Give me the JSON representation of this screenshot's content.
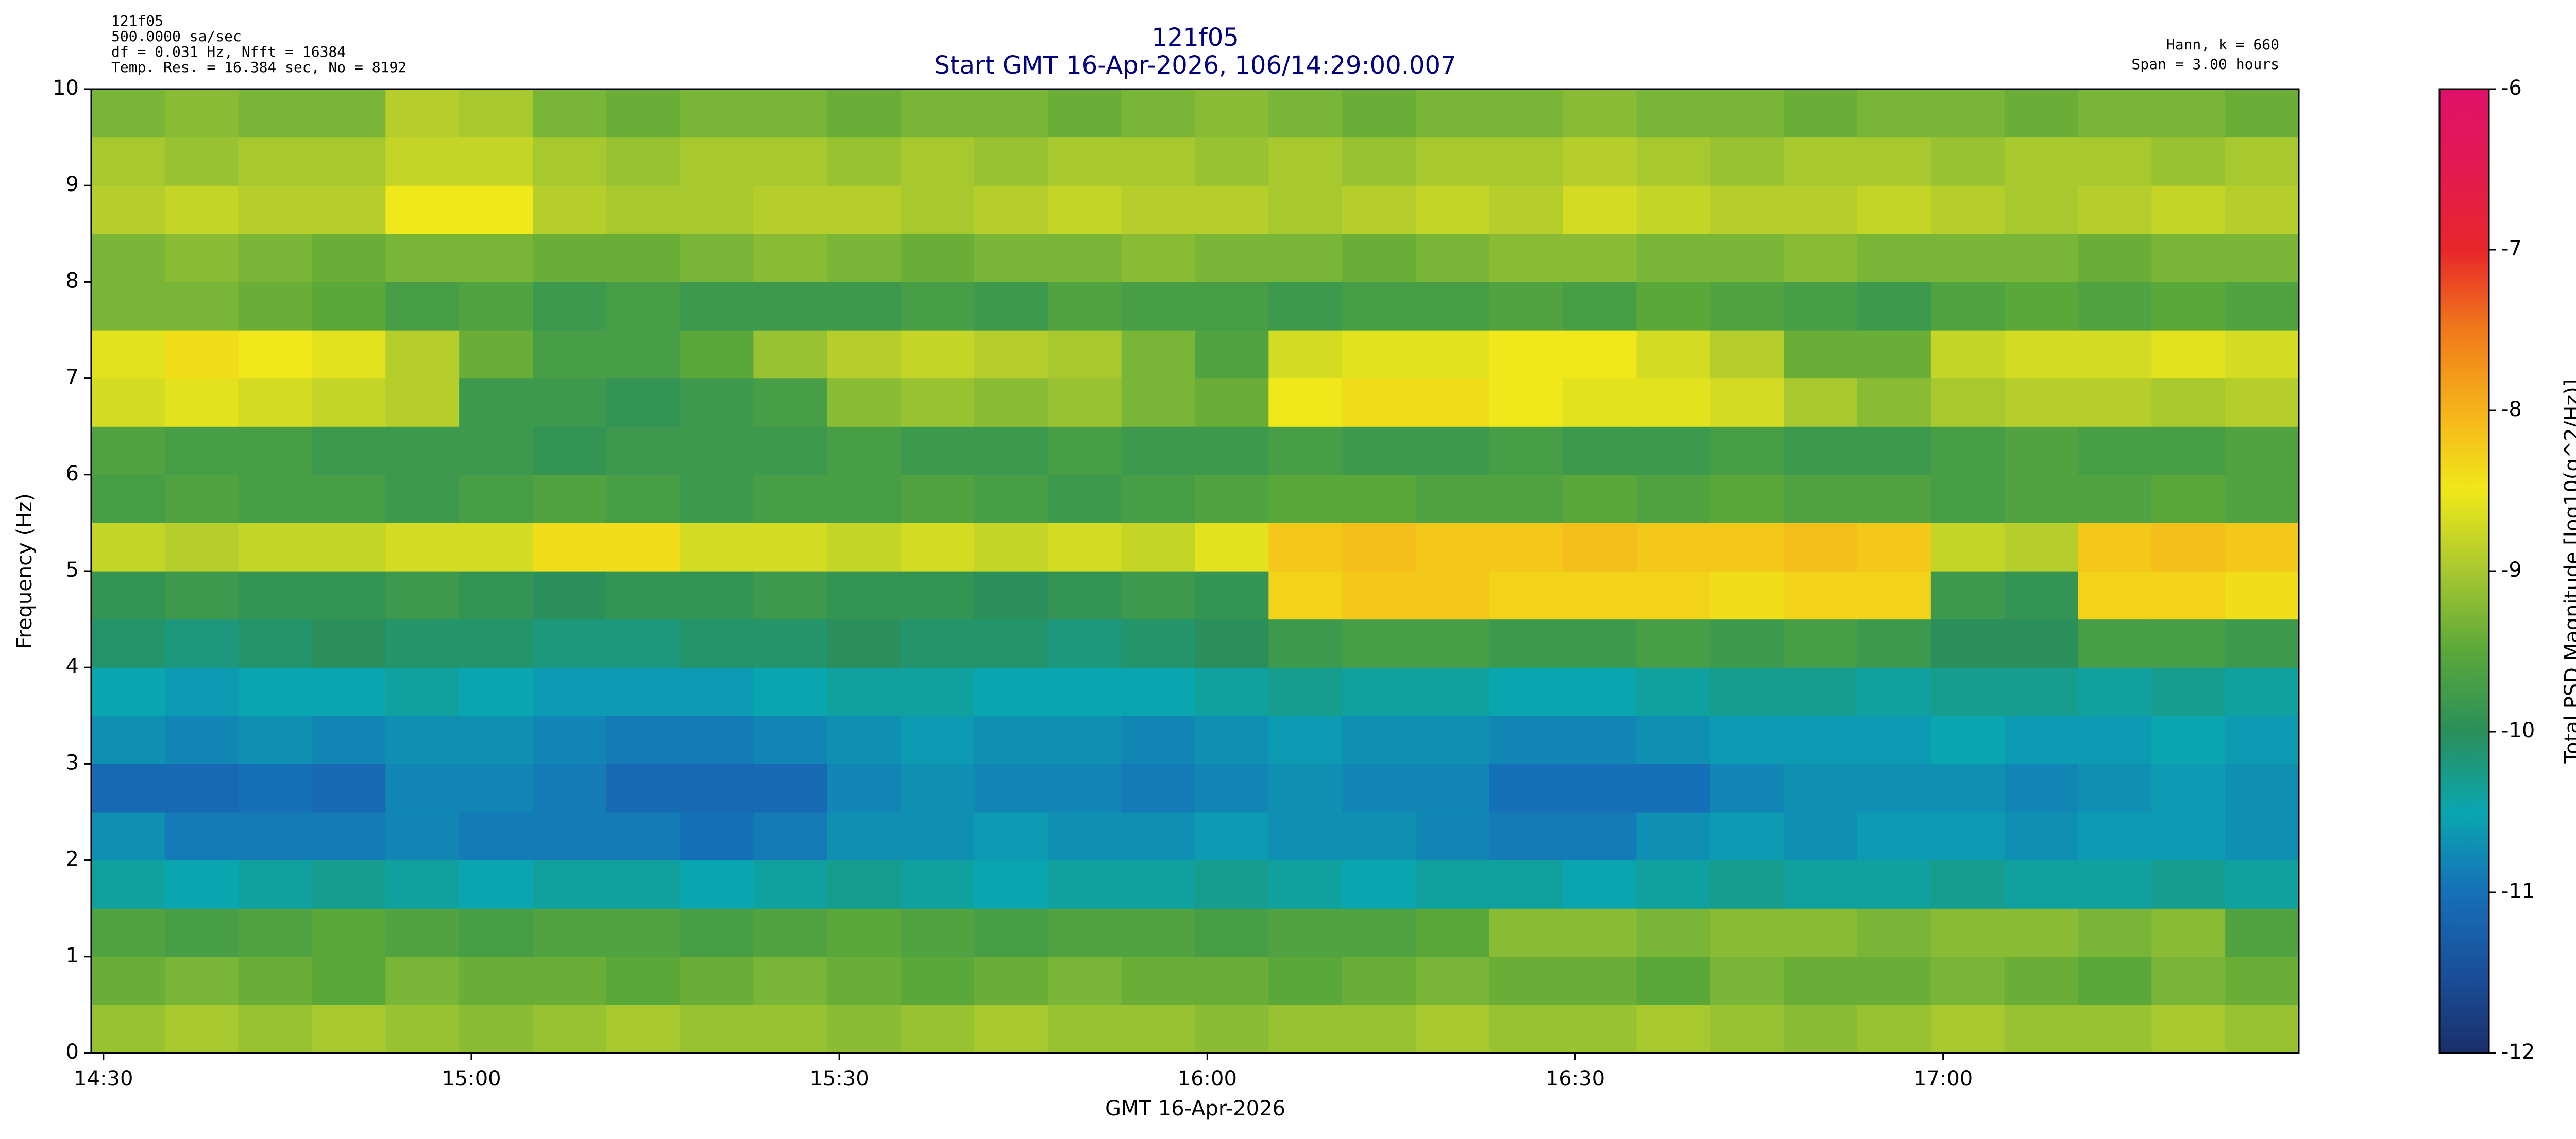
{
  "chart_data": {
    "type": "heatmap",
    "title": "121f05",
    "subtitle": "Start GMT 16-Apr-2026, 106/14:29:00.007",
    "info_left": [
      "121f05",
      "500.0000 sa/sec",
      "df = 0.031 Hz,  Nfft = 16384",
      "Temp. Res. = 16.384 sec, No = 8192"
    ],
    "info_right": [
      "Hann, k = 660",
      "Span = 3.00 hours"
    ],
    "xlabel": "GMT 16-Apr-2026",
    "ylabel": "Frequency (Hz)",
    "colorbar_label": "Total PSD Magnitude [log10(g^2/Hz)]",
    "xlim": [
      0,
      180
    ],
    "xticks": [
      {
        "value": 1,
        "label": "14:30"
      },
      {
        "value": 31,
        "label": "15:00"
      },
      {
        "value": 61,
        "label": "15:30"
      },
      {
        "value": 91,
        "label": "16:00"
      },
      {
        "value": 121,
        "label": "16:30"
      },
      {
        "value": 151,
        "label": "17:00"
      }
    ],
    "ylim": [
      0,
      10
    ],
    "yticks": [
      0,
      1,
      2,
      3,
      4,
      5,
      6,
      7,
      8,
      9,
      10
    ],
    "clim": [
      -12,
      -6
    ],
    "cticks": [
      -12,
      -11,
      -10,
      -9,
      -8,
      -7,
      -6
    ],
    "colors": [
      "#1a2f6a",
      "#1a4f9a",
      "#1670b8",
      "#0aa6b0",
      "#2a8f5a",
      "#5aa83a",
      "#a8c830",
      "#f0e81a",
      "#f6b31a",
      "#f07a1a",
      "#e8262a",
      "#e21a50",
      "#e0106a"
    ],
    "z": [
      [
        -9.1,
        -9.0,
        -9.1,
        -9.0,
        -9.1,
        -9.2,
        -9.1,
        -9.0,
        -9.1,
        -9.1,
        -9.2,
        -9.1,
        -9.0,
        -9.1,
        -9.1,
        -9.2,
        -9.1,
        -9.1,
        -9.0,
        -9.1,
        -9.1,
        -9.0,
        -9.1,
        -9.2,
        -9.1,
        -9.0,
        -9.1,
        -9.1,
        -9.0,
        -9.1
      ],
      [
        -9.4,
        -9.3,
        -9.4,
        -9.5,
        -9.3,
        -9.4,
        -9.4,
        -9.5,
        -9.4,
        -9.3,
        -9.4,
        -9.5,
        -9.4,
        -9.3,
        -9.4,
        -9.4,
        -9.5,
        -9.4,
        -9.3,
        -9.4,
        -9.4,
        -9.5,
        -9.3,
        -9.4,
        -9.4,
        -9.3,
        -9.4,
        -9.5,
        -9.3,
        -9.4
      ],
      [
        -9.6,
        -9.7,
        -9.6,
        -9.5,
        -9.6,
        -9.7,
        -9.6,
        -9.6,
        -9.7,
        -9.6,
        -9.5,
        -9.6,
        -9.7,
        -9.6,
        -9.6,
        -9.7,
        -9.6,
        -9.6,
        -9.5,
        -9.2,
        -9.2,
        -9.3,
        -9.2,
        -9.2,
        -9.3,
        -9.2,
        -9.2,
        -9.3,
        -9.2,
        -9.6
      ],
      [
        -10.4,
        -10.5,
        -10.4,
        -10.3,
        -10.4,
        -10.5,
        -10.4,
        -10.4,
        -10.5,
        -10.4,
        -10.3,
        -10.4,
        -10.5,
        -10.4,
        -10.4,
        -10.3,
        -10.4,
        -10.5,
        -10.4,
        -10.4,
        -10.5,
        -10.4,
        -10.3,
        -10.4,
        -10.4,
        -10.3,
        -10.4,
        -10.4,
        -10.3,
        -10.4
      ],
      [
        -10.7,
        -10.9,
        -10.9,
        -10.9,
        -10.8,
        -10.9,
        -10.9,
        -10.9,
        -11.0,
        -10.9,
        -10.7,
        -10.7,
        -10.6,
        -10.7,
        -10.7,
        -10.6,
        -10.7,
        -10.7,
        -10.8,
        -10.9,
        -10.9,
        -10.7,
        -10.6,
        -10.7,
        -10.6,
        -10.6,
        -10.7,
        -10.6,
        -10.6,
        -10.7
      ],
      [
        -11.1,
        -11.1,
        -11.0,
        -11.1,
        -10.8,
        -10.8,
        -10.9,
        -11.1,
        -11.1,
        -11.1,
        -10.8,
        -10.7,
        -10.8,
        -10.8,
        -10.9,
        -10.8,
        -10.7,
        -10.8,
        -10.8,
        -11.0,
        -11.0,
        -11.0,
        -10.8,
        -10.7,
        -10.7,
        -10.7,
        -10.8,
        -10.7,
        -10.6,
        -10.7
      ],
      [
        -10.7,
        -10.8,
        -10.7,
        -10.8,
        -10.7,
        -10.7,
        -10.8,
        -10.9,
        -10.9,
        -10.8,
        -10.7,
        -10.6,
        -10.7,
        -10.7,
        -10.8,
        -10.7,
        -10.6,
        -10.7,
        -10.7,
        -10.8,
        -10.8,
        -10.7,
        -10.6,
        -10.6,
        -10.6,
        -10.5,
        -10.6,
        -10.6,
        -10.5,
        -10.6
      ],
      [
        -10.5,
        -10.6,
        -10.5,
        -10.5,
        -10.4,
        -10.5,
        -10.6,
        -10.6,
        -10.6,
        -10.5,
        -10.4,
        -10.4,
        -10.5,
        -10.5,
        -10.5,
        -10.4,
        -10.3,
        -10.4,
        -10.4,
        -10.5,
        -10.5,
        -10.4,
        -10.3,
        -10.3,
        -10.4,
        -10.3,
        -10.3,
        -10.4,
        -10.3,
        -10.4
      ],
      [
        -10.1,
        -10.2,
        -10.1,
        -10.0,
        -10.1,
        -10.1,
        -10.2,
        -10.2,
        -10.1,
        -10.1,
        -10.0,
        -10.1,
        -10.1,
        -10.2,
        -10.1,
        -10.0,
        -9.8,
        -9.7,
        -9.7,
        -9.8,
        -9.8,
        -9.7,
        -9.8,
        -9.7,
        -9.8,
        -10.0,
        -10.0,
        -9.7,
        -9.7,
        -9.8
      ],
      [
        -9.9,
        -9.8,
        -9.9,
        -9.9,
        -9.8,
        -9.9,
        -10.0,
        -9.9,
        -9.9,
        -9.8,
        -9.9,
        -9.9,
        -10.0,
        -9.9,
        -9.8,
        -9.9,
        -8.3,
        -8.2,
        -8.2,
        -8.3,
        -8.3,
        -8.3,
        -8.4,
        -8.3,
        -8.3,
        -9.8,
        -9.9,
        -8.3,
        -8.3,
        -8.4
      ],
      [
        -8.8,
        -8.9,
        -8.8,
        -8.8,
        -8.7,
        -8.7,
        -8.4,
        -8.4,
        -8.7,
        -8.7,
        -8.8,
        -8.7,
        -8.8,
        -8.7,
        -8.8,
        -8.6,
        -8.2,
        -8.1,
        -8.2,
        -8.2,
        -8.1,
        -8.2,
        -8.2,
        -8.1,
        -8.2,
        -8.8,
        -8.9,
        -8.2,
        -8.1,
        -8.2
      ],
      [
        -9.7,
        -9.6,
        -9.7,
        -9.7,
        -9.8,
        -9.7,
        -9.6,
        -9.7,
        -9.8,
        -9.7,
        -9.7,
        -9.6,
        -9.7,
        -9.8,
        -9.7,
        -9.6,
        -9.5,
        -9.5,
        -9.6,
        -9.6,
        -9.5,
        -9.6,
        -9.5,
        -9.6,
        -9.6,
        -9.7,
        -9.6,
        -9.6,
        -9.5,
        -9.6
      ],
      [
        -9.6,
        -9.7,
        -9.7,
        -9.8,
        -9.8,
        -9.8,
        -9.9,
        -9.8,
        -9.8,
        -9.8,
        -9.7,
        -9.8,
        -9.8,
        -9.7,
        -9.8,
        -9.8,
        -9.7,
        -9.8,
        -9.8,
        -9.7,
        -9.8,
        -9.8,
        -9.7,
        -9.8,
        -9.8,
        -9.7,
        -9.6,
        -9.7,
        -9.7,
        -9.6
      ],
      [
        -8.7,
        -8.6,
        -8.7,
        -8.8,
        -8.9,
        -9.8,
        -9.8,
        -9.9,
        -9.8,
        -9.7,
        -9.2,
        -9.1,
        -9.2,
        -9.1,
        -9.3,
        -9.4,
        -8.5,
        -8.4,
        -8.4,
        -8.5,
        -8.6,
        -8.6,
        -8.7,
        -9.0,
        -9.2,
        -9.0,
        -8.9,
        -8.9,
        -9.0,
        -8.9
      ],
      [
        -8.6,
        -8.4,
        -8.5,
        -8.6,
        -8.9,
        -9.4,
        -9.7,
        -9.7,
        -9.5,
        -9.1,
        -8.9,
        -8.8,
        -8.9,
        -9.0,
        -9.3,
        -9.6,
        -8.7,
        -8.6,
        -8.6,
        -8.5,
        -8.5,
        -8.7,
        -8.9,
        -9.4,
        -9.4,
        -8.8,
        -8.7,
        -8.7,
        -8.6,
        -8.7
      ],
      [
        -9.3,
        -9.3,
        -9.4,
        -9.5,
        -9.7,
        -9.6,
        -9.8,
        -9.7,
        -9.8,
        -9.8,
        -9.8,
        -9.7,
        -9.8,
        -9.6,
        -9.7,
        -9.7,
        -9.8,
        -9.7,
        -9.7,
        -9.6,
        -9.7,
        -9.5,
        -9.6,
        -9.7,
        -9.8,
        -9.6,
        -9.5,
        -9.6,
        -9.5,
        -9.6
      ],
      [
        -9.3,
        -9.2,
        -9.3,
        -9.4,
        -9.3,
        -9.3,
        -9.4,
        -9.4,
        -9.3,
        -9.2,
        -9.3,
        -9.4,
        -9.3,
        -9.3,
        -9.2,
        -9.3,
        -9.3,
        -9.4,
        -9.3,
        -9.2,
        -9.2,
        -9.3,
        -9.3,
        -9.2,
        -9.3,
        -9.3,
        -9.3,
        -9.4,
        -9.3,
        -9.3
      ],
      [
        -8.9,
        -8.8,
        -8.9,
        -8.9,
        -8.5,
        -8.5,
        -8.9,
        -9.0,
        -9.0,
        -8.9,
        -8.9,
        -9.0,
        -8.9,
        -8.8,
        -8.9,
        -8.9,
        -9.0,
        -8.9,
        -8.8,
        -8.9,
        -8.7,
        -8.8,
        -8.9,
        -8.9,
        -8.8,
        -8.9,
        -9.0,
        -8.9,
        -8.8,
        -8.9
      ],
      [
        -9.0,
        -9.1,
        -9.0,
        -9.0,
        -8.8,
        -8.8,
        -9.0,
        -9.1,
        -9.0,
        -9.0,
        -9.1,
        -9.0,
        -9.1,
        -9.0,
        -9.0,
        -9.1,
        -9.0,
        -9.1,
        -9.0,
        -9.0,
        -8.9,
        -9.0,
        -9.1,
        -9.0,
        -9.0,
        -9.1,
        -9.0,
        -9.0,
        -9.1,
        -9.0
      ],
      [
        -9.3,
        -9.2,
        -9.3,
        -9.3,
        -8.9,
        -9.0,
        -9.3,
        -9.4,
        -9.3,
        -9.3,
        -9.4,
        -9.3,
        -9.3,
        -9.4,
        -9.3,
        -9.2,
        -9.3,
        -9.4,
        -9.3,
        -9.3,
        -9.2,
        -9.3,
        -9.3,
        -9.4,
        -9.3,
        -9.3,
        -9.4,
        -9.3,
        -9.3,
        -9.4
      ]
    ]
  }
}
